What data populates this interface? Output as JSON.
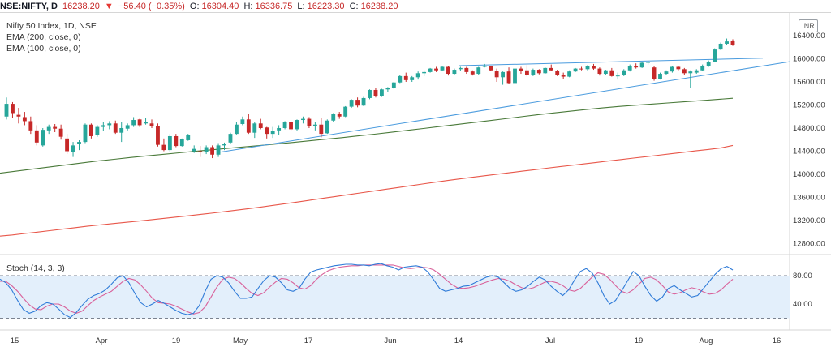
{
  "header": {
    "symbol": "NSE:NIFTY, D",
    "last": "16238.20",
    "change": "−56.40 (−0.35%)",
    "o_label": "O:",
    "o": "16304.40",
    "h_label": "H:",
    "h": "16336.75",
    "l_label": "L:",
    "l": "16223.30",
    "c_label": "C:",
    "c": "16238.20",
    "down_marker": "▼"
  },
  "legend": {
    "title": "Nifty 50 Index, 1D, NSE",
    "ema200": "EMA (200, close, 0)",
    "ema100": "EMA (100, close, 0)"
  },
  "currency": "INR",
  "colors": {
    "up": "#26a69a",
    "down": "#c62828",
    "ema200": "#e8574a",
    "ema100": "#4a7a3a",
    "trend": "#4a9bde",
    "k": "#2f7bd8",
    "d": "#d9619a",
    "band": "#e3effb"
  },
  "chart_data": [
    {
      "type": "candlestick",
      "title": "Nifty 50 Index, 1D, NSE",
      "y_ticks": [
        "16400.00",
        "16000.00",
        "15600.00",
        "15200.00",
        "14800.00",
        "14400.00",
        "14000.00",
        "13600.00",
        "13200.00",
        "12800.00"
      ],
      "x_ticks": [
        "15",
        "Apr",
        "19",
        "May",
        "17",
        "Jun",
        "14",
        "Jul",
        "19",
        "Aug",
        "16"
      ],
      "ylim": [
        12600,
        16600
      ],
      "ohlc": [
        [
          15000,
          15330,
          14950,
          15220
        ],
        [
          15220,
          15250,
          14970,
          15060
        ],
        [
          15030,
          15150,
          14880,
          15000
        ],
        [
          14990,
          15080,
          14850,
          14920
        ],
        [
          14920,
          15000,
          14700,
          14760
        ],
        [
          14760,
          14850,
          14500,
          14550
        ],
        [
          14500,
          14800,
          14480,
          14770
        ],
        [
          14760,
          14860,
          14700,
          14820
        ],
        [
          14820,
          14870,
          14730,
          14790
        ],
        [
          14790,
          14860,
          14600,
          14650
        ],
        [
          14620,
          14700,
          14350,
          14400
        ],
        [
          14380,
          14560,
          14300,
          14500
        ],
        [
          14520,
          14590,
          14420,
          14560
        ],
        [
          14560,
          14880,
          14540,
          14860
        ],
        [
          14860,
          14880,
          14620,
          14660
        ],
        [
          14680,
          14850,
          14650,
          14820
        ],
        [
          14820,
          14900,
          14750,
          14850
        ],
        [
          14850,
          14920,
          14780,
          14880
        ],
        [
          14880,
          14930,
          14700,
          14720
        ],
        [
          14720,
          14900,
          14560,
          14800
        ],
        [
          14790,
          14880,
          14760,
          14850
        ],
        [
          14850,
          14990,
          14820,
          14940
        ],
        [
          14950,
          14960,
          14820,
          14850
        ],
        [
          14880,
          14980,
          14860,
          14900
        ],
        [
          14880,
          14950,
          14800,
          14830
        ],
        [
          14830,
          14880,
          14480,
          14510
        ],
        [
          14510,
          14620,
          14400,
          14420
        ],
        [
          14420,
          14700,
          14380,
          14660
        ],
        [
          14660,
          14700,
          14470,
          14490
        ],
        [
          14490,
          14620,
          14480,
          14610
        ],
        [
          14590,
          14700,
          14580,
          14680
        ],
        [
          14400,
          14500,
          14370,
          14440
        ],
        [
          14400,
          14490,
          14300,
          14380
        ],
        [
          14380,
          14500,
          14350,
          14470
        ],
        [
          14470,
          14500,
          14280,
          14340
        ],
        [
          14340,
          14540,
          14300,
          14500
        ],
        [
          14500,
          14550,
          14420,
          14520
        ],
        [
          14550,
          14720,
          14530,
          14700
        ],
        [
          14700,
          14900,
          14690,
          14860
        ],
        [
          14870,
          15000,
          14850,
          14950
        ],
        [
          14950,
          15050,
          14700,
          14720
        ],
        [
          14720,
          14900,
          14630,
          14880
        ],
        [
          14880,
          14960,
          14780,
          14800
        ],
        [
          14810,
          14820,
          14620,
          14700
        ],
        [
          14700,
          14820,
          14630,
          14750
        ],
        [
          14760,
          14850,
          14680,
          14800
        ],
        [
          14800,
          14920,
          14780,
          14900
        ],
        [
          14900,
          14920,
          14750,
          14780
        ],
        [
          14780,
          14950,
          14760,
          14940
        ],
        [
          14940,
          15000,
          14880,
          14960
        ],
        [
          14960,
          14990,
          14800,
          14830
        ],
        [
          14830,
          14900,
          14760,
          14860
        ],
        [
          14860,
          14970,
          14640,
          14700
        ],
        [
          14710,
          14950,
          14700,
          14930
        ],
        [
          14930,
          15060,
          14900,
          15050
        ],
        [
          15050,
          15080,
          14960,
          15000
        ],
        [
          15000,
          15180,
          14990,
          15170
        ],
        [
          15170,
          15300,
          15150,
          15290
        ],
        [
          15290,
          15330,
          15160,
          15190
        ],
        [
          15190,
          15340,
          15180,
          15320
        ],
        [
          15320,
          15470,
          15300,
          15460
        ],
        [
          15460,
          15500,
          15330,
          15350
        ],
        [
          15350,
          15480,
          15340,
          15470
        ],
        [
          15470,
          15510,
          15420,
          15490
        ],
        [
          15490,
          15600,
          15480,
          15590
        ],
        [
          15590,
          15720,
          15580,
          15700
        ],
        [
          15700,
          15760,
          15600,
          15630
        ],
        [
          15630,
          15700,
          15600,
          15680
        ],
        [
          15680,
          15780,
          15640,
          15750
        ],
        [
          15750,
          15800,
          15700,
          15770
        ],
        [
          15770,
          15840,
          15760,
          15830
        ],
        [
          15830,
          15860,
          15770,
          15800
        ],
        [
          15800,
          15870,
          15790,
          15860
        ],
        [
          15860,
          15880,
          15710,
          15740
        ],
        [
          15740,
          15830,
          15720,
          15810
        ],
        [
          15820,
          15860,
          15790,
          15840
        ],
        [
          15840,
          15860,
          15740,
          15770
        ],
        [
          15780,
          15800,
          15710,
          15730
        ],
        [
          15740,
          15860,
          15720,
          15850
        ],
        [
          15860,
          15910,
          15850,
          15880
        ],
        [
          15880,
          15880,
          15790,
          15800
        ],
        [
          15790,
          15830,
          15600,
          15680
        ],
        [
          15680,
          15780,
          15550,
          15770
        ],
        [
          15780,
          15850,
          15560,
          15580
        ],
        [
          15580,
          15850,
          15570,
          15830
        ],
        [
          15830,
          15860,
          15740,
          15790
        ],
        [
          15800,
          15890,
          15690,
          15720
        ],
        [
          15720,
          15830,
          15700,
          15810
        ],
        [
          15810,
          15820,
          15730,
          15750
        ],
        [
          15750,
          15850,
          15740,
          15840
        ],
        [
          15840,
          15900,
          15790,
          15800
        ],
        [
          15790,
          15810,
          15700,
          15720
        ],
        [
          15720,
          15760,
          15650,
          15690
        ],
        [
          15690,
          15800,
          15680,
          15780
        ],
        [
          15780,
          15840,
          15770,
          15830
        ],
        [
          15830,
          15860,
          15800,
          15820
        ],
        [
          15820,
          15890,
          15800,
          15880
        ],
        [
          15870,
          15910,
          15810,
          15830
        ],
        [
          15830,
          15850,
          15710,
          15740
        ],
        [
          15740,
          15810,
          15720,
          15800
        ],
        [
          15800,
          15840,
          15690,
          15700
        ],
        [
          15700,
          15760,
          15640,
          15710
        ],
        [
          15720,
          15820,
          15700,
          15800
        ],
        [
          15800,
          15900,
          15780,
          15880
        ],
        [
          15880,
          15920,
          15830,
          15850
        ],
        [
          15850,
          15950,
          15840,
          15930
        ],
        [
          15930,
          15960,
          15900,
          15950
        ],
        [
          15850,
          15880,
          15620,
          15650
        ],
        [
          15650,
          15760,
          15640,
          15740
        ],
        [
          15740,
          15800,
          15720,
          15780
        ],
        [
          15780,
          15880,
          15760,
          15860
        ],
        [
          15860,
          15870,
          15800,
          15820
        ],
        [
          15820,
          15840,
          15720,
          15750
        ],
        [
          15750,
          15800,
          15500,
          15780
        ],
        [
          15760,
          15820,
          15740,
          15800
        ],
        [
          15800,
          15900,
          15790,
          15880
        ],
        [
          15880,
          15970,
          15860,
          15950
        ],
        [
          15950,
          16180,
          15940,
          16160
        ],
        [
          16160,
          16280,
          16150,
          16260
        ],
        [
          16260,
          16350,
          16240,
          16300
        ],
        [
          16304,
          16337,
          16223,
          16238
        ]
      ],
      "ema100": [
        14020,
        14055,
        14090,
        14125,
        14160,
        14195,
        14230,
        14260,
        14290,
        14318,
        14345,
        14372,
        14398,
        14424,
        14450,
        14475,
        14500,
        14525,
        14552,
        14580,
        14608,
        14635,
        14665,
        14695,
        14727,
        14760,
        14793,
        14826,
        14860,
        14894,
        14928,
        14962,
        14996,
        15030,
        15062,
        15092,
        15122,
        15150,
        15175,
        15196,
        15215,
        15235,
        15255,
        15275,
        15295,
        15316
      ],
      "ema200": [
        12930,
        12950,
        12975,
        13000,
        13025,
        13050,
        13075,
        13100,
        13123,
        13145,
        13167,
        13188,
        13210,
        13232,
        13255,
        13278,
        13302,
        13327,
        13352,
        13378,
        13405,
        13433,
        13462,
        13492,
        13522,
        13553,
        13584,
        13615,
        13646,
        13677,
        13708,
        13739,
        13770,
        13801,
        13832,
        13862,
        13892,
        13920,
        13948,
        13975,
        14001,
        14027,
        14053,
        14079,
        14105,
        14130,
        14155,
        14180,
        14205,
        14230,
        14255,
        14280,
        14305,
        14330,
        14355,
        14380,
        14405,
        14430,
        14455,
        14500
      ],
      "trendlines": [
        [
          [
            15770,
            16010
          ],
          [
            15660,
            16020
          ]
        ],
        [
          [
            14250,
            15950
          ]
        ],
        [
          [
            15880,
            16020
          ]
        ]
      ]
    },
    {
      "type": "line",
      "title": "Stoch (14, 3, 3)",
      "y_ticks": [
        "80.00",
        "40.00"
      ],
      "ylim": [
        0,
        100
      ],
      "band": [
        20,
        80
      ],
      "series": [
        {
          "values": [
            75,
            70,
            60,
            45,
            32,
            27,
            30,
            38,
            42,
            40,
            33,
            25,
            21,
            28,
            38,
            47,
            52,
            55,
            60,
            68,
            77,
            80,
            70,
            55,
            42,
            36,
            40,
            45,
            41,
            36,
            31,
            27,
            25,
            27,
            38,
            58,
            75,
            80,
            78,
            70,
            58,
            48,
            48,
            50,
            62,
            73,
            80,
            78,
            70,
            60,
            58,
            62,
            75,
            85,
            88,
            90,
            92,
            94,
            95,
            96,
            96,
            95,
            95,
            94,
            96,
            97,
            94,
            92,
            88,
            92,
            93,
            94,
            92,
            85,
            74,
            62,
            58,
            60,
            62,
            65,
            66,
            70,
            74,
            78,
            80,
            78,
            70,
            62,
            58,
            60,
            65,
            72,
            78,
            74,
            65,
            58,
            52,
            60,
            74,
            86,
            90,
            84,
            70,
            52,
            40,
            45,
            58,
            72,
            86,
            80,
            65,
            52,
            44,
            50,
            62,
            66,
            60,
            55,
            50,
            52,
            62,
            72,
            82,
            90,
            93,
            88
          ]
        },
        {
          "values": [
            72,
            72,
            66,
            58,
            48,
            39,
            33,
            32,
            37,
            40,
            40,
            36,
            30,
            27,
            30,
            38,
            45,
            50,
            54,
            58,
            65,
            72,
            76,
            74,
            67,
            58,
            48,
            42,
            41,
            40,
            37,
            33,
            29,
            26,
            28,
            36,
            50,
            64,
            75,
            78,
            76,
            70,
            62,
            55,
            52,
            56,
            64,
            71,
            76,
            75,
            70,
            63,
            61,
            66,
            75,
            82,
            87,
            90,
            92,
            93,
            94,
            94,
            95,
            95,
            95,
            95,
            95,
            95,
            93,
            91,
            90,
            91,
            92,
            91,
            88,
            82,
            75,
            68,
            63,
            62,
            63,
            65,
            68,
            71,
            74,
            76,
            75,
            72,
            67,
            63,
            61,
            63,
            67,
            71,
            72,
            70,
            66,
            60,
            58,
            62,
            70,
            78,
            84,
            82,
            75,
            66,
            58,
            55,
            60,
            68,
            76,
            78,
            74,
            66,
            57,
            54,
            56,
            60,
            63,
            61,
            57,
            54,
            55,
            60,
            68,
            75
          ]
        }
      ]
    }
  ]
}
